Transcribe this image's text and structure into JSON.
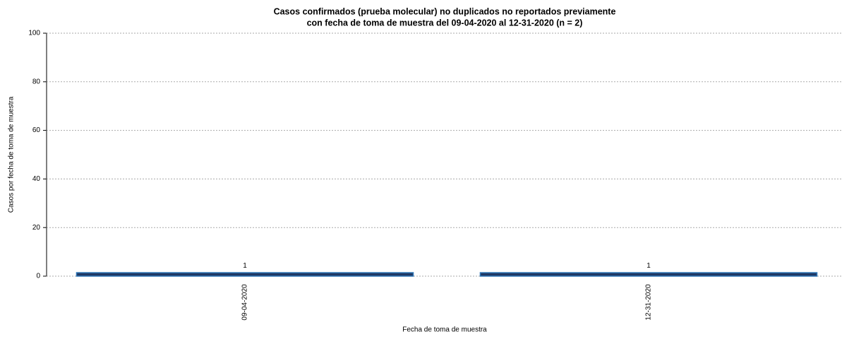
{
  "chart_data": {
    "type": "bar",
    "title": [
      "Casos confirmados (prueba molecular) no duplicados no reportados previamente",
      "con fecha de toma de muestra del 09-04-2020 al 12-31-2020 (n = 2)"
    ],
    "x_label": "Fecha de toma de muestra",
    "y_label": "Casos por fecha de toma de muestra",
    "categories": [
      "09-04-2020",
      "12-31-2020"
    ],
    "values": [
      1,
      1
    ],
    "color": "#1f3864",
    "edge_color": "#2e75b6",
    "ylim": [
      0,
      100
    ],
    "yticks": [
      0,
      20,
      40,
      60,
      80,
      100
    ],
    "grid": true
  }
}
